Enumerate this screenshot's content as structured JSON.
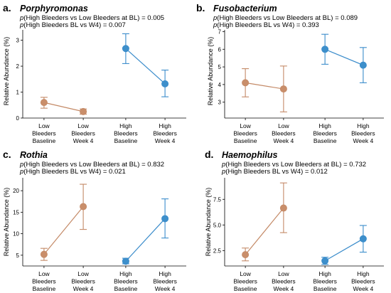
{
  "figure": {
    "colors": {
      "low": "#c98e6a",
      "high": "#3d8fcb",
      "axis": "#000000",
      "stroke_low": "#c48a67",
      "stroke_high": "#3a8ccb"
    }
  },
  "panels": [
    {
      "letter": "a.",
      "taxon": "Porphyromonas",
      "stat1_prefix": "p",
      "stat1": "(High Bleeders vs Low Bleeders at BL) = 0.005",
      "stat2_prefix": "p",
      "stat2": "(High Bleeders BL vs W4) = 0.007",
      "ylabel": "Relative Abundance (%)",
      "categories": [
        [
          "Low",
          "Bleeders",
          "Baseline"
        ],
        [
          "Low",
          "Bleeders",
          "Week 4"
        ],
        [
          "High",
          "Bleeders",
          "Baseline"
        ],
        [
          "High",
          "Bleeders",
          "Week 4"
        ]
      ],
      "show_categories": true
    },
    {
      "letter": "b.",
      "taxon": "Fusobacterium",
      "stat1_prefix": "p",
      "stat1": "(High Bleeders vs Low Bleeders at BL) = 0.089",
      "stat2_prefix": "p",
      "stat2": "(High Bleeders BL vs W4) = 0.393",
      "ylabel": "Relative Abundance (%)",
      "categories": [
        [
          "Low",
          "Bleeders",
          "Baseline"
        ],
        [
          "Low",
          "Bleeders",
          "Week 4"
        ],
        [
          "High",
          "Bleeders",
          "Baseline"
        ],
        [
          "High",
          "Bleeders",
          "Week 4"
        ]
      ],
      "show_categories": true
    },
    {
      "letter": "c.",
      "taxon": "Rothia",
      "stat1_prefix": "p",
      "stat1": "(High Bleeders vs Low Bleeders at BL) = 0.832",
      "stat2_prefix": "p",
      "stat2": "(High Bleeders BL vs W4) = 0.021",
      "ylabel": "Relative Abundance (%)",
      "categories": [
        [
          "Low",
          "Bleeders",
          "Baseline"
        ],
        [
          "Low",
          "Bleeders",
          "Week 4"
        ],
        [
          "High",
          "Bleeders",
          "Baseline"
        ],
        [
          "High",
          "Bleeders",
          "Week 4"
        ]
      ],
      "show_categories": true
    },
    {
      "letter": "d.",
      "taxon": "Haemophilus",
      "stat1_prefix": "p",
      "stat1": "(High Bleeders vs Low Bleeders at BL) = 0.732",
      "stat2_prefix": "p",
      "stat2": "(High Bleeders BL vs W4) = 0.012",
      "ylabel": "Relative Abundance (%)",
      "categories": [
        [
          "Low",
          "Bleeders",
          "Baseline"
        ],
        [
          "Low",
          "Bleeders",
          "Week 4"
        ],
        [
          "High",
          "Bleeders",
          "Baseline"
        ],
        [
          "High",
          "Bleeders",
          "Week 4"
        ]
      ],
      "show_categories": true
    }
  ],
  "chart_data": [
    {
      "type": "scatter",
      "title": "Porphyromonas",
      "ylabel": "Relative Abundance (%)",
      "ylim": [
        0,
        3.4
      ],
      "yticks": [
        0,
        1,
        2,
        3
      ],
      "categories": [
        "Low Bleeders Baseline",
        "Low Bleeders Week 4",
        "High Bleeders Baseline",
        "High Bleeders Week 4"
      ],
      "series": [
        {
          "group": "low",
          "points": [
            {
              "cat": 0,
              "mean": 0.6,
              "lo": 0.38,
              "hi": 0.8
            },
            {
              "cat": 1,
              "mean": 0.25,
              "lo": 0.15,
              "hi": 0.35
            }
          ]
        },
        {
          "group": "high",
          "points": [
            {
              "cat": 2,
              "mean": 2.68,
              "lo": 2.1,
              "hi": 3.25
            },
            {
              "cat": 3,
              "mean": 1.32,
              "lo": 0.82,
              "hi": 1.85
            }
          ]
        }
      ],
      "grid": false
    },
    {
      "type": "scatter",
      "title": "Fusobacterium",
      "ylabel": "Relative Abundance (%)",
      "ylim": [
        2.1,
        7.1
      ],
      "yticks": [
        3,
        4,
        5,
        6,
        7
      ],
      "categories": [
        "Low Bleeders Baseline",
        "Low Bleeders Week 4",
        "High Bleeders Baseline",
        "High Bleeders Week 4"
      ],
      "series": [
        {
          "group": "low",
          "points": [
            {
              "cat": 0,
              "mean": 4.1,
              "lo": 3.3,
              "hi": 4.9
            },
            {
              "cat": 1,
              "mean": 3.75,
              "lo": 2.45,
              "hi": 5.05
            }
          ]
        },
        {
          "group": "high",
          "points": [
            {
              "cat": 2,
              "mean": 6.0,
              "lo": 5.15,
              "hi": 6.85
            },
            {
              "cat": 3,
              "mean": 5.1,
              "lo": 4.1,
              "hi": 6.1
            }
          ]
        }
      ],
      "grid": false
    },
    {
      "type": "scatter",
      "title": "Rothia",
      "ylabel": "Relative Abundance (%)",
      "ylim": [
        2.5,
        23
      ],
      "yticks": [
        5,
        10,
        15,
        20
      ],
      "categories": [
        "Low Bleeders Baseline",
        "Low Bleeders Week 4",
        "High Bleeders Baseline",
        "High Bleeders Week 4"
      ],
      "series": [
        {
          "group": "low",
          "points": [
            {
              "cat": 0,
              "mean": 5.2,
              "lo": 3.8,
              "hi": 6.6
            },
            {
              "cat": 1,
              "mean": 16.3,
              "lo": 11.0,
              "hi": 21.5
            }
          ]
        },
        {
          "group": "high",
          "points": [
            {
              "cat": 2,
              "mean": 3.6,
              "lo": 3.0,
              "hi": 4.3
            },
            {
              "cat": 3,
              "mean": 13.5,
              "lo": 9.0,
              "hi": 18.1
            }
          ]
        }
      ],
      "grid": false
    },
    {
      "type": "scatter",
      "title": "Haemophilus",
      "ylabel": "Relative Abundance (%)",
      "ylim": [
        1.0,
        9.6
      ],
      "yticks": [
        2.5,
        5.0,
        7.5
      ],
      "ytick_labels": [
        "2.5",
        "5.0",
        "7.5"
      ],
      "categories": [
        "Low Bleeders Baseline",
        "Low Bleeders Week 4",
        "High Bleeders Baseline",
        "High Bleeders Week 4"
      ],
      "series": [
        {
          "group": "low",
          "points": [
            {
              "cat": 0,
              "mean": 2.1,
              "lo": 1.5,
              "hi": 2.75
            },
            {
              "cat": 1,
              "mean": 6.65,
              "lo": 4.25,
              "hi": 9.1
            }
          ]
        },
        {
          "group": "high",
          "points": [
            {
              "cat": 2,
              "mean": 1.5,
              "lo": 1.15,
              "hi": 1.85
            },
            {
              "cat": 3,
              "mean": 3.65,
              "lo": 2.35,
              "hi": 4.95
            }
          ]
        }
      ],
      "grid": false
    }
  ]
}
